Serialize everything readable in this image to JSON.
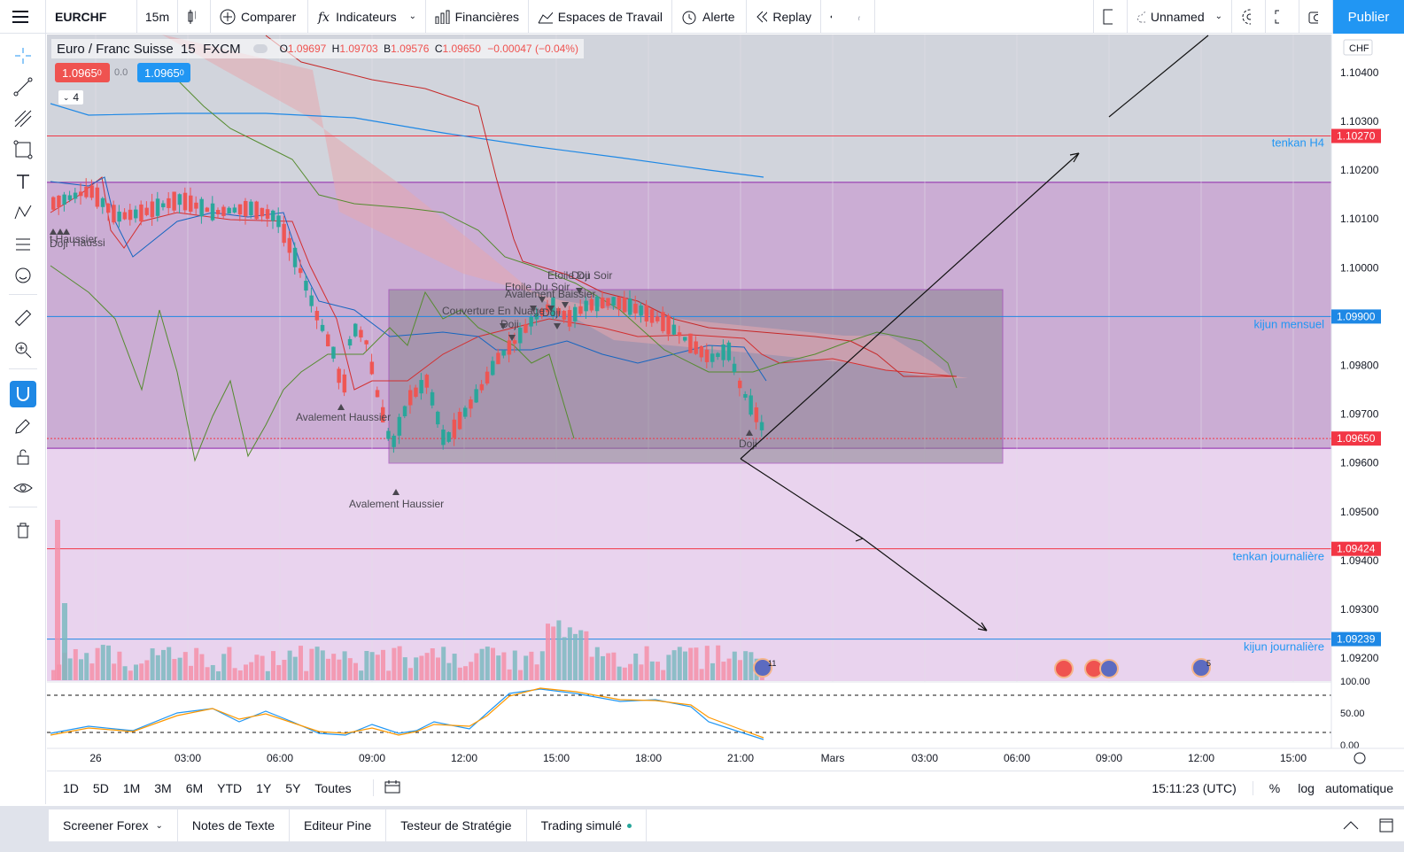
{
  "topbar": {
    "symbol": "EURCHF",
    "interval": "15m",
    "compare": "Comparer",
    "indicators": "Indicateurs",
    "financials": "Financières",
    "workspaces": "Espaces de Travail",
    "alert": "Alerte",
    "replay": "Replay",
    "layout_name": "Unnamed",
    "publish": "Publier"
  },
  "legend": {
    "title": "Euro / Franc Suisse  15  FXCM",
    "o_label": "O",
    "o": "1.09697",
    "h_label": "H",
    "h": "1.09703",
    "b_label": "B",
    "b": "1.09576",
    "c_label": "C",
    "c": "1.09650",
    "change": "−0.00047 (−0.04%)",
    "sell_price": "1.0965",
    "sell_sup": "0",
    "spread": "0.0",
    "buy_price": "1.0965",
    "buy_sup": "0",
    "collapsed_count": "4"
  },
  "price_axis": {
    "currency": "CHF",
    "ticks": [
      "1.10400",
      "1.10300",
      "1.10200",
      "1.10100",
      "1.10000",
      "1.09900",
      "1.09800",
      "1.09700",
      "1.09600",
      "1.09500",
      "1.09400",
      "1.09300",
      "1.09200"
    ],
    "markers": [
      {
        "value": "1.10270",
        "color": "#f23645"
      },
      {
        "value": "1.09900",
        "color": "#1e88e5"
      },
      {
        "value": "1.09650",
        "color": "#f23645"
      },
      {
        "value": "1.09424",
        "color": "#f23645"
      },
      {
        "value": "1.09239",
        "color": "#1e88e5"
      }
    ]
  },
  "line_labels": {
    "tenkan_h4": "tenkan H4",
    "kijun_mensuel": "kijun mensuel",
    "tenkan_journaliere": "tenkan journalière",
    "kijun_journaliere": "kijun journalière"
  },
  "pattern_labels": {
    "haussier_left": "t Haussier",
    "doji_left": "Doji",
    "doji_left2": "Haussi",
    "avalement1": "Avalement Haussier",
    "avalement2": "Avalement Haussier",
    "couverture": "Couverture En Nuage",
    "doji_mid": "Doji",
    "etoile1": "Etoile Du Soir",
    "etoile2": "Etoile Du Soir",
    "avalement3": "Avalement Baissier",
    "doji3": "Doji",
    "doji4": "Doji",
    "doji5": "Doji"
  },
  "osc_axis": [
    "100.00",
    "50.00",
    "0.00"
  ],
  "time_axis": [
    "26",
    "03:00",
    "06:00",
    "09:00",
    "12:00",
    "15:00",
    "18:00",
    "21:00",
    "Mars",
    "03:00",
    "06:00",
    "09:00",
    "12:00",
    "15:00"
  ],
  "event_badges": {
    "count_a": "11",
    "count_b": "5"
  },
  "timeframes": [
    "1D",
    "5D",
    "1M",
    "3M",
    "6M",
    "YTD",
    "1Y",
    "5Y",
    "Toutes"
  ],
  "status": {
    "clock": "15:11:23 (UTC)",
    "percent": "%",
    "log": "log",
    "auto": "automatique"
  },
  "bottom_tabs": [
    "Screener Forex",
    "Notes de Texte",
    "Editeur Pine",
    "Testeur de Stratégie",
    "Trading simulé"
  ],
  "colors": {
    "accent": "#2196f3",
    "bull": "#26a69a",
    "bear": "#ef5350",
    "zone_purple": "#e9d3ee",
    "zone_top": "#c8a9d0",
    "box_grey": "#888888"
  }
}
